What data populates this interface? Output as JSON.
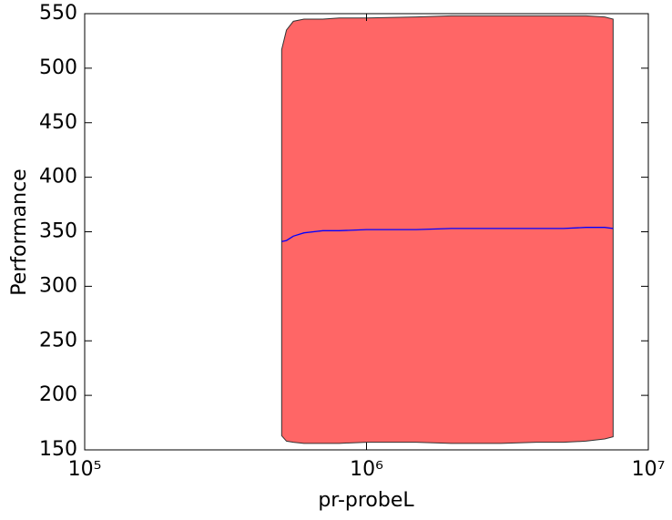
{
  "chart_data": {
    "type": "line",
    "xlabel": "pr-probeL",
    "ylabel": "Performance",
    "x": [
      500000,
      520000,
      550000,
      600000,
      700000,
      800000,
      1000000,
      1500000,
      2000000,
      3000000,
      4000000,
      5000000,
      6000000,
      7000000,
      7500000
    ],
    "series": [
      {
        "color": "#0000ff",
        "band_color": "#ff6666",
        "values": [
          341,
          342,
          346,
          349,
          351,
          351,
          352,
          352,
          353,
          353,
          353,
          353,
          354,
          354,
          353
        ],
        "upper": [
          517,
          535,
          543,
          545,
          545,
          546,
          546,
          547,
          548,
          548,
          548,
          548,
          548,
          547,
          545
        ],
        "lower": [
          163,
          158,
          157,
          156,
          156,
          156,
          157,
          157,
          156,
          156,
          157,
          157,
          158,
          160,
          162
        ]
      }
    ],
    "xscale": "log",
    "xlim": [
      100000,
      10000000
    ],
    "xticks": [
      {
        "value": 100000,
        "label": "10⁵"
      },
      {
        "value": 1000000,
        "label": "10⁶"
      },
      {
        "value": 10000000,
        "label": "10⁷"
      }
    ],
    "ylim": [
      150,
      550
    ],
    "yticks": [
      150,
      200,
      250,
      300,
      350,
      400,
      450,
      500,
      550
    ]
  }
}
